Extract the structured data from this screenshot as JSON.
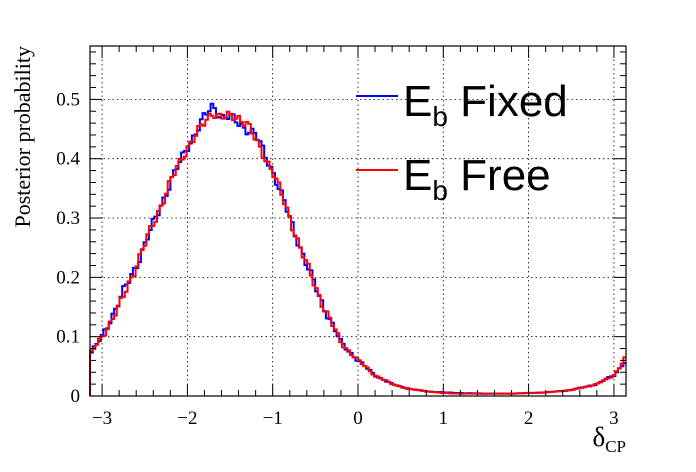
{
  "chart_data": {
    "type": "line",
    "style": "step-histogram",
    "title": "",
    "xlabel": {
      "main": "δ",
      "sub": "CP"
    },
    "ylabel": "Posterior probability",
    "xlim": [
      -3.1416,
      3.1416
    ],
    "ylim": [
      0,
      0.59
    ],
    "xticks": [
      -3,
      -2,
      -1,
      0,
      1,
      2,
      3
    ],
    "xtick_labels": [
      "−3",
      "−2",
      "−1",
      "0",
      "1",
      "2",
      "3"
    ],
    "yticks": [
      0,
      0.1,
      0.2,
      0.3,
      0.4,
      0.5
    ],
    "ytick_labels": [
      "0",
      "0.1",
      "0.2",
      "0.3",
      "0.4",
      "0.5"
    ],
    "grid": true,
    "legend_position": "top-right",
    "series": [
      {
        "label": {
          "main": "E",
          "sub": "b",
          "rest": " Fixed"
        },
        "color": "#0000ff",
        "x": [
          -3.14,
          -3.0,
          -2.8,
          -2.6,
          -2.4,
          -2.2,
          -2.0,
          -1.8,
          -1.7,
          -1.6,
          -1.5,
          -1.4,
          -1.3,
          -1.2,
          -1.0,
          -0.8,
          -0.6,
          -0.4,
          -0.2,
          0.0,
          0.2,
          0.4,
          0.6,
          0.8,
          1.0,
          1.2,
          1.5,
          1.8,
          2.0,
          2.2,
          2.5,
          2.8,
          3.0,
          3.14
        ],
        "y": [
          0.07,
          0.1,
          0.16,
          0.22,
          0.29,
          0.36,
          0.42,
          0.47,
          0.49,
          0.47,
          0.47,
          0.46,
          0.45,
          0.44,
          0.38,
          0.3,
          0.22,
          0.15,
          0.09,
          0.06,
          0.035,
          0.02,
          0.012,
          0.008,
          0.006,
          0.005,
          0.004,
          0.004,
          0.005,
          0.006,
          0.01,
          0.02,
          0.035,
          0.06
        ]
      },
      {
        "label": {
          "main": "E",
          "sub": "b",
          "rest": " Free"
        },
        "color": "#ff0000",
        "x": [
          -3.14,
          -3.0,
          -2.8,
          -2.6,
          -2.4,
          -2.2,
          -2.0,
          -1.8,
          -1.7,
          -1.6,
          -1.5,
          -1.4,
          -1.3,
          -1.2,
          -1.0,
          -0.8,
          -0.6,
          -0.4,
          -0.2,
          0.0,
          0.2,
          0.4,
          0.6,
          0.8,
          1.0,
          1.2,
          1.5,
          1.8,
          2.0,
          2.2,
          2.5,
          2.8,
          3.0,
          3.14
        ],
        "y": [
          0.07,
          0.1,
          0.15,
          0.22,
          0.29,
          0.36,
          0.42,
          0.46,
          0.48,
          0.47,
          0.47,
          0.47,
          0.46,
          0.43,
          0.38,
          0.3,
          0.22,
          0.15,
          0.09,
          0.06,
          0.035,
          0.02,
          0.012,
          0.008,
          0.005,
          0.004,
          0.004,
          0.004,
          0.005,
          0.006,
          0.01,
          0.02,
          0.035,
          0.065
        ]
      }
    ]
  }
}
